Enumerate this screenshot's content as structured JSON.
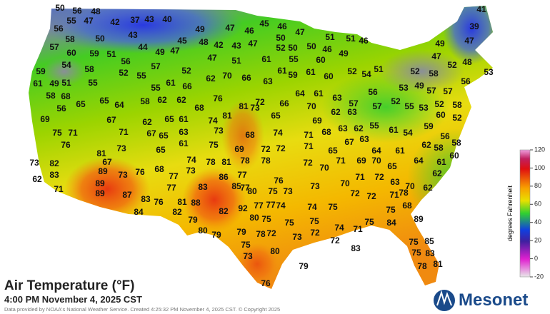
{
  "map": {
    "title": "Air Temperature (°F)",
    "subtitle": "4:00 PM November 4, 2025 CST",
    "credit": "Data provided by NOAA's National Weather Service. Created 4:25:32 PM November 4, 2025 CST. © Copyright 2025",
    "logo": "Mesonet",
    "colorbar": {
      "label": "degrees Fahrenheit",
      "ticks": [
        120,
        100,
        80,
        60,
        40,
        20,
        0,
        -20
      ]
    },
    "stations": [
      50,
      56,
      48,
      55,
      47,
      42,
      37,
      43,
      40,
      45,
      46,
      47,
      46,
      49,
      41,
      39,
      56,
      43,
      50,
      45,
      48,
      42,
      43,
      47,
      50,
      47,
      51,
      46,
      51,
      47,
      49,
      58,
      44,
      49,
      47,
      52,
      50,
      50,
      46,
      49,
      57,
      60,
      59,
      51,
      56,
      47,
      48,
      52,
      53,
      57,
      52,
      47,
      51,
      61,
      55,
      60,
      54,
      58,
      52,
      55,
      54,
      51,
      52,
      52,
      58,
      59,
      61,
      49,
      51,
      58,
      68,
      56,
      55,
      55,
      61,
      66,
      62,
      70,
      66,
      63,
      61,
      59,
      61,
      60,
      53,
      49,
      57,
      56,
      57,
      52,
      65,
      65,
      64,
      58,
      62,
      62,
      76,
      72,
      64,
      61,
      63,
      56,
      57,
      55,
      53,
      58,
      52,
      60,
      69,
      67,
      62,
      65,
      61,
      68,
      74,
      81,
      81,
      73,
      65,
      66,
      70,
      69,
      62,
      63,
      57,
      52,
      75,
      71,
      76,
      71,
      67,
      65,
      73,
      63,
      74,
      71,
      68,
      63,
      62,
      55,
      61,
      54,
      59,
      56,
      73,
      69,
      72,
      72,
      68,
      65,
      61,
      75,
      71,
      65,
      67,
      63,
      64,
      61,
      62,
      58,
      58,
      60,
      81,
      67,
      73,
      82,
      74,
      78,
      81,
      78,
      78,
      72,
      70,
      71,
      69,
      70,
      65,
      64,
      61,
      62,
      89,
      73,
      76,
      68,
      73,
      86,
      77,
      83,
      62,
      89,
      77,
      77,
      80,
      76,
      70,
      71,
      72,
      63,
      70,
      62,
      71,
      89,
      87,
      83,
      77,
      83,
      85,
      75,
      73,
      73,
      72,
      72,
      71,
      76,
      81,
      88,
      77,
      78,
      80,
      84,
      82,
      82,
      92,
      77,
      74,
      74,
      75,
      75,
      68,
      89,
      79,
      75,
      75,
      75,
      75,
      84,
      80,
      79,
      79,
      78,
      72,
      73,
      72,
      74,
      71,
      72,
      83,
      75,
      80,
      75,
      85,
      75,
      83,
      73,
      79,
      78,
      81,
      76
    ]
  }
}
